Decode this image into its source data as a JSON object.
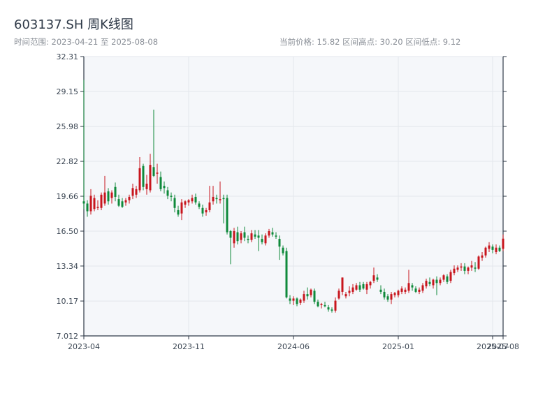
{
  "header": {
    "title": "603137.SH 周K线图",
    "range_text": "时间范围: 2023-04-21 至 2025-08-08",
    "stats_text": "当前价格: 15.82   区间高点: 30.20   区间低点: 9.12"
  },
  "colors": {
    "up": "#c8161d",
    "down": "#0f8a3b",
    "plot_bg": "#f5f7fa",
    "grid": "#e3e7ec",
    "axis": "#2f3a48"
  },
  "chart_data": {
    "type": "candlestick",
    "title": "603137.SH 周K线图",
    "xlabel": "",
    "ylabel": "",
    "ylim": [
      7.012,
      32.31
    ],
    "y_ticks": [
      7.012,
      10.17,
      13.34,
      16.5,
      19.66,
      22.82,
      25.98,
      29.15,
      32.31
    ],
    "y_tick_labels": [
      "7.012",
      "10.17",
      "13.34",
      "16.50",
      "19.66",
      "22.82",
      "25.98",
      "29.15",
      "32.31"
    ],
    "x_ticks": [
      {
        "label": "2023-04",
        "index": 0
      },
      {
        "label": "2023-11",
        "index": 30
      },
      {
        "label": "2024-06",
        "index": 60
      },
      {
        "label": "2025-01",
        "index": 90
      },
      {
        "label": "2025-07",
        "index": 117
      },
      {
        "label": "2025-08",
        "index": 120
      }
    ],
    "grid": true,
    "ohlc": [
      [
        19.2,
        30.2,
        18.5,
        19.0
      ],
      [
        19.0,
        19.3,
        17.8,
        18.3
      ],
      [
        18.3,
        20.3,
        18.0,
        19.7
      ],
      [
        18.5,
        19.8,
        18.3,
        19.5
      ],
      [
        18.6,
        19.3,
        18.4,
        18.7
      ],
      [
        18.6,
        20.0,
        18.4,
        19.8
      ],
      [
        19.0,
        21.5,
        18.8,
        20.0
      ],
      [
        20.1,
        20.4,
        18.9,
        19.2
      ],
      [
        19.5,
        20.2,
        19.0,
        20.0
      ],
      [
        20.5,
        20.9,
        19.2,
        19.6
      ],
      [
        19.4,
        19.8,
        18.7,
        18.8
      ],
      [
        19.2,
        19.5,
        18.6,
        18.7
      ],
      [
        19.1,
        19.5,
        18.8,
        19.3
      ],
      [
        19.3,
        19.8,
        19.0,
        19.6
      ],
      [
        19.7,
        20.8,
        19.4,
        20.4
      ],
      [
        19.8,
        20.6,
        19.5,
        20.3
      ],
      [
        20.2,
        23.2,
        20.0,
        22.2
      ],
      [
        22.4,
        22.6,
        20.2,
        20.5
      ],
      [
        20.3,
        21.6,
        19.8,
        20.8
      ],
      [
        20.2,
        23.5,
        20.0,
        22.5
      ],
      [
        22.3,
        27.5,
        21.4,
        21.5
      ],
      [
        21.7,
        22.6,
        20.8,
        21.8
      ],
      [
        21.4,
        21.9,
        20.1,
        20.3
      ],
      [
        20.6,
        21.0,
        19.9,
        20.4
      ],
      [
        20.2,
        20.5,
        19.4,
        19.7
      ],
      [
        19.7,
        20.0,
        19.2,
        19.6
      ],
      [
        19.5,
        19.8,
        18.2,
        18.6
      ],
      [
        18.4,
        18.8,
        17.8,
        18.0
      ],
      [
        18.1,
        19.4,
        17.5,
        19.1
      ],
      [
        18.9,
        19.3,
        18.6,
        19.2
      ],
      [
        19.1,
        19.4,
        18.8,
        19.3
      ],
      [
        19.2,
        19.8,
        19.0,
        19.5
      ],
      [
        19.6,
        19.9,
        18.9,
        19.1
      ],
      [
        19.0,
        19.2,
        18.5,
        18.7
      ],
      [
        18.6,
        18.9,
        17.8,
        18.1
      ],
      [
        18.2,
        18.6,
        17.9,
        18.4
      ],
      [
        18.4,
        20.6,
        18.2,
        19.1
      ],
      [
        19.2,
        20.6,
        18.9,
        19.6
      ],
      [
        19.5,
        19.8,
        19.0,
        19.4
      ],
      [
        19.3,
        21.0,
        19.0,
        19.4
      ],
      [
        19.5,
        19.8,
        17.2,
        19.4
      ],
      [
        19.5,
        19.8,
        16.2,
        16.4
      ],
      [
        16.5,
        16.6,
        13.5,
        15.9
      ],
      [
        15.4,
        16.8,
        15.0,
        16.5
      ],
      [
        16.4,
        16.9,
        15.3,
        15.6
      ],
      [
        15.7,
        16.5,
        15.4,
        16.3
      ],
      [
        16.4,
        16.9,
        15.6,
        15.9
      ],
      [
        15.8,
        16.1,
        15.4,
        15.7
      ],
      [
        15.7,
        16.6,
        15.5,
        16.3
      ],
      [
        16.2,
        16.6,
        15.8,
        16.0
      ],
      [
        16.1,
        16.6,
        14.7,
        15.9
      ],
      [
        15.8,
        16.2,
        15.3,
        15.5
      ],
      [
        15.4,
        16.3,
        15.2,
        16.1
      ],
      [
        16.1,
        16.7,
        15.9,
        16.5
      ],
      [
        16.4,
        16.8,
        16.0,
        16.2
      ],
      [
        16.1,
        16.4,
        15.8,
        16.0
      ],
      [
        15.8,
        16.1,
        13.9,
        15.1
      ],
      [
        15.0,
        15.2,
        14.3,
        14.5
      ],
      [
        14.7,
        15.0,
        10.4,
        10.5
      ],
      [
        10.4,
        10.7,
        9.9,
        10.2
      ],
      [
        10.2,
        10.6,
        9.8,
        10.4
      ],
      [
        10.4,
        10.5,
        9.7,
        9.9
      ],
      [
        10.0,
        10.4,
        9.8,
        10.3
      ],
      [
        10.2,
        11.1,
        10.0,
        10.8
      ],
      [
        10.8,
        11.4,
        10.3,
        10.6
      ],
      [
        10.7,
        11.3,
        10.5,
        11.2
      ],
      [
        11.1,
        11.3,
        9.9,
        10.1
      ],
      [
        10.1,
        10.3,
        9.6,
        9.7
      ],
      [
        9.8,
        10.0,
        9.5,
        9.9
      ],
      [
        9.8,
        10.1,
        9.6,
        9.7
      ],
      [
        9.6,
        9.8,
        9.2,
        9.4
      ],
      [
        9.4,
        9.6,
        9.12,
        9.3
      ],
      [
        9.3,
        10.5,
        9.12,
        10.2
      ],
      [
        10.4,
        11.3,
        10.3,
        11.1
      ],
      [
        11.0,
        12.3,
        10.7,
        12.3
      ],
      [
        10.6,
        11.0,
        10.4,
        10.8
      ],
      [
        10.9,
        11.5,
        10.6,
        11.1
      ],
      [
        11.0,
        11.7,
        10.8,
        11.4
      ],
      [
        11.2,
        11.8,
        11.1,
        11.6
      ],
      [
        11.6,
        11.9,
        11.0,
        11.2
      ],
      [
        11.7,
        11.9,
        11.2,
        11.3
      ],
      [
        11.2,
        11.9,
        10.8,
        11.7
      ],
      [
        11.6,
        12.0,
        11.3,
        11.9
      ],
      [
        12.0,
        13.2,
        11.8,
        12.5
      ],
      [
        12.3,
        12.6,
        11.9,
        12.1
      ],
      [
        11.2,
        11.6,
        10.8,
        11.0
      ],
      [
        11.0,
        11.3,
        10.3,
        10.5
      ],
      [
        10.6,
        10.8,
        10.1,
        10.3
      ],
      [
        10.3,
        11.0,
        9.9,
        10.8
      ],
      [
        10.7,
        11.0,
        10.5,
        10.9
      ],
      [
        10.7,
        11.2,
        10.5,
        11.1
      ],
      [
        11.0,
        11.5,
        10.8,
        11.3
      ],
      [
        11.0,
        11.4,
        10.8,
        11.2
      ],
      [
        11.1,
        13.0,
        10.9,
        11.8
      ],
      [
        11.6,
        11.8,
        11.1,
        11.4
      ],
      [
        11.3,
        11.5,
        10.9,
        11.0
      ],
      [
        11.0,
        11.4,
        10.8,
        11.2
      ],
      [
        11.1,
        11.8,
        10.9,
        11.6
      ],
      [
        11.5,
        12.2,
        11.3,
        12.0
      ],
      [
        11.9,
        12.3,
        11.5,
        11.7
      ],
      [
        11.6,
        12.2,
        11.3,
        12.1
      ],
      [
        12.1,
        12.4,
        10.7,
        11.8
      ],
      [
        11.8,
        12.3,
        11.6,
        12.1
      ],
      [
        12.1,
        12.6,
        11.9,
        12.5
      ],
      [
        12.4,
        12.6,
        11.7,
        11.9
      ],
      [
        12.0,
        13.0,
        11.8,
        12.8
      ],
      [
        12.7,
        13.4,
        12.5,
        13.1
      ],
      [
        13.0,
        13.4,
        12.8,
        13.2
      ],
      [
        13.2,
        13.6,
        12.9,
        13.3
      ],
      [
        13.3,
        13.6,
        12.6,
        12.9
      ],
      [
        12.9,
        13.3,
        12.6,
        13.2
      ],
      [
        13.2,
        13.8,
        12.9,
        13.4
      ],
      [
        13.2,
        13.7,
        12.8,
        13.1
      ],
      [
        13.1,
        14.3,
        13.0,
        14.2
      ],
      [
        14.1,
        14.6,
        13.8,
        14.3
      ],
      [
        14.3,
        15.1,
        14.1,
        15.0
      ],
      [
        14.9,
        15.5,
        14.6,
        15.2
      ],
      [
        15.1,
        15.3,
        14.5,
        14.8
      ],
      [
        14.6,
        15.3,
        14.4,
        15.0
      ],
      [
        15.0,
        15.2,
        14.6,
        14.7
      ],
      [
        14.9,
        16.2,
        14.7,
        15.82
      ]
    ]
  }
}
